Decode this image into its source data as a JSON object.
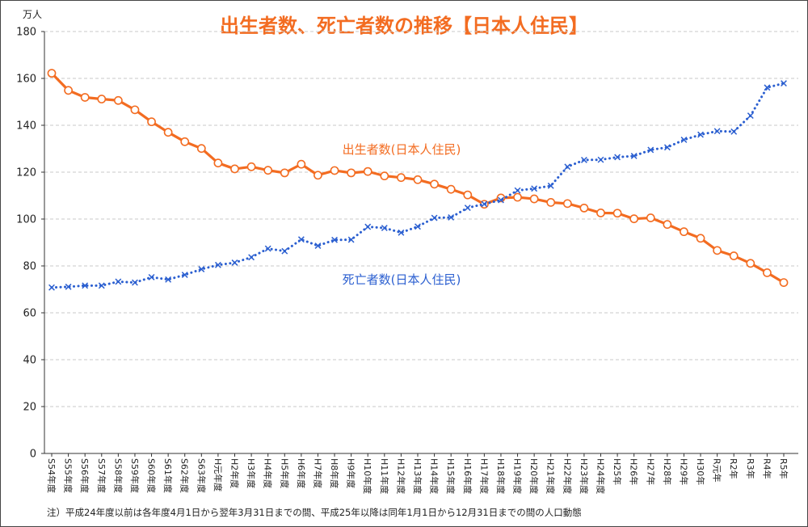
{
  "chart_data": {
    "type": "line",
    "title": "出生者数、死亡者数の推移【日本人住民】",
    "yunit": "万人",
    "ylim": [
      0,
      180
    ],
    "yticks": [
      0,
      20,
      40,
      60,
      80,
      100,
      120,
      140,
      160,
      180
    ],
    "grid": true,
    "categories": [
      "S54年度",
      "S55年度",
      "S56年度",
      "S57年度",
      "S58年度",
      "S59年度",
      "S60年度",
      "S61年度",
      "S62年度",
      "S63年度",
      "H元年度",
      "H2年度",
      "H3年度",
      "H4年度",
      "H5年度",
      "H6年度",
      "H7年度",
      "H8年度",
      "H9年度",
      "H10年度",
      "H11年度",
      "H12年度",
      "H13年度",
      "H14年度",
      "H15年度",
      "H16年度",
      "H17年度",
      "H18年度",
      "H19年度",
      "H20年度",
      "H21年度",
      "H22年度",
      "H23年度",
      "H24年度",
      "H25年",
      "H26年",
      "H27年",
      "H28年",
      "H29年",
      "H30年",
      "R元年",
      "R2年",
      "R3年",
      "R4年",
      "R5年"
    ],
    "series": [
      {
        "name": "出生者数(日本人住民)",
        "color": "#f36c21",
        "values": [
          162.2,
          154.9,
          151.9,
          151.2,
          150.6,
          146.6,
          141.5,
          137.0,
          133.0,
          130.1,
          123.9,
          121.4,
          122.3,
          120.8,
          119.7,
          123.4,
          118.7,
          120.7,
          119.7,
          120.3,
          118.4,
          117.7,
          116.8,
          114.9,
          112.7,
          110.3,
          106.3,
          109.0,
          109.3,
          108.6,
          107.1,
          106.6,
          104.7,
          102.6,
          102.5,
          100.1,
          100.5,
          97.7,
          94.6,
          91.8,
          86.6,
          84.3,
          81.1,
          77.1,
          72.9
        ]
      },
      {
        "name": "死亡者数(日本人住民)",
        "color": "#2b5fd0",
        "values": [
          70.8,
          71.1,
          71.6,
          71.6,
          73.3,
          72.9,
          75.2,
          74.2,
          76.2,
          78.6,
          80.4,
          81.4,
          83.7,
          87.4,
          86.3,
          91.3,
          88.6,
          91.1,
          91.2,
          96.7,
          96.2,
          94.2,
          96.8,
          100.5,
          100.7,
          104.8,
          106.4,
          108.1,
          112.2,
          113.0,
          114.2,
          122.3,
          125.2,
          125.3,
          126.4,
          126.9,
          129.5,
          130.6,
          133.8,
          136.0,
          137.5,
          137.3,
          144.1,
          156.1,
          157.9
        ]
      }
    ]
  },
  "note": "注）平成24年度以前は各年度4月1日から翌年3月31日までの間、平成25年以降は同年1月1日から12月31日までの間の人口動態"
}
